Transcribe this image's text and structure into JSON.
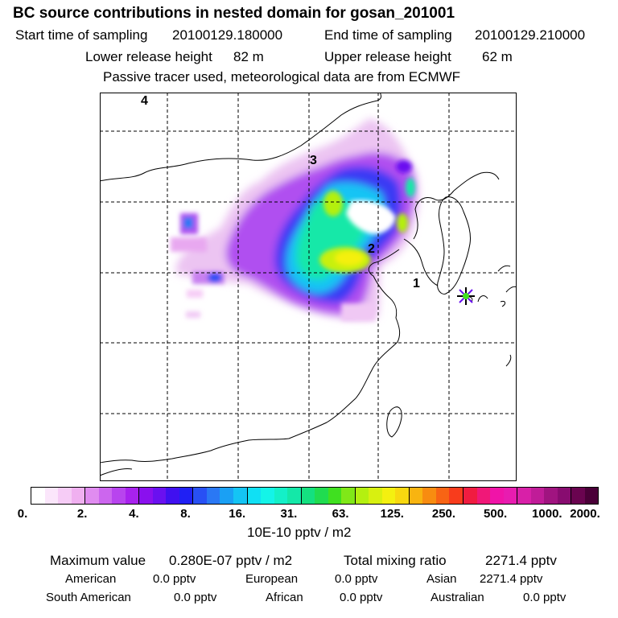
{
  "header": {
    "title": "BC  source contributions in nested domain for gosan_201001",
    "start_label": "Start time of sampling",
    "start_value": "20100129.180000",
    "end_label": "End time of sampling",
    "end_value": "20100129.210000",
    "lower_label": "Lower release height",
    "lower_value": "82 m",
    "upper_label": "Upper release height",
    "upper_value": "62 m",
    "tracer_note": "Passive tracer used, meteorological data are from ECMWF"
  },
  "map": {
    "labels": [
      "1",
      "2",
      "3",
      "4"
    ],
    "receptor_marker": "star-marker"
  },
  "colorbar": {
    "ticks": [
      "0.",
      "2.",
      "4.",
      "8.",
      "16.",
      "31.",
      "63.",
      "125.",
      "250.",
      "500.",
      "1000.",
      "2000."
    ],
    "unit": "10E-10 pptv / m2",
    "colors": [
      "#ffffff",
      "#fbe6fb",
      "#f6ccf6",
      "#f0b0f0",
      "#e08cf0",
      "#cc66ee",
      "#b844ee",
      "#a822ee",
      "#8a10ee",
      "#6a10f0",
      "#4010f0",
      "#2020f4",
      "#2850f4",
      "#2a78f4",
      "#1aa0f4",
      "#14c4f4",
      "#10e0f4",
      "#14f4e8",
      "#14f0c8",
      "#14e8a8",
      "#14e080",
      "#20dc50",
      "#40e020",
      "#80e818",
      "#b4f010",
      "#d8f010",
      "#f4f010",
      "#f8d810",
      "#f8b410",
      "#f88c10",
      "#f86414",
      "#f83c1c",
      "#f01c40",
      "#f01878",
      "#f014a8",
      "#e81cb0",
      "#d820a8",
      "#c01c98",
      "#a01480",
      "#880c70",
      "#6a0450",
      "#4a0038"
    ]
  },
  "stats": {
    "max_label": "Maximum value",
    "max_value": "0.280E-07 pptv / m2",
    "total_label": "Total mixing ratio",
    "total_value": "2271.4 pptv"
  },
  "contributions": [
    {
      "name": "American",
      "value": "0.0 pptv"
    },
    {
      "name": "European",
      "value": "0.0 pptv"
    },
    {
      "name": "Asian",
      "value": "2271.4 pptv"
    },
    {
      "name": "South American",
      "value": "0.0 pptv"
    },
    {
      "name": "African",
      "value": "0.0 pptv"
    },
    {
      "name": "Australian",
      "value": "0.0 pptv"
    }
  ]
}
